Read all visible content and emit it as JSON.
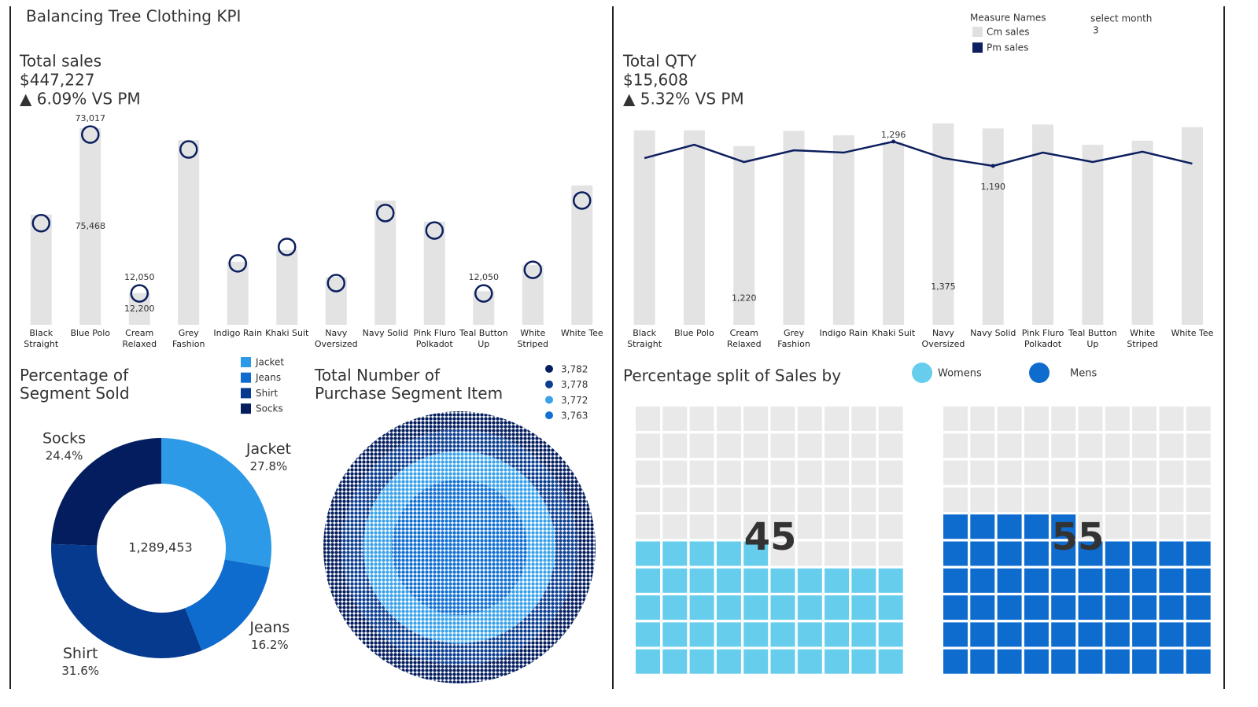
{
  "title": "Balancing Tree Clothing KPI",
  "chart_data": [
    {
      "type": "bar",
      "title": "Total sales",
      "kpi": "$447,227",
      "change": "▲ 6.09% VS PM",
      "categories": [
        "Black Straight",
        "Blue Polo",
        "Cream Relaxed",
        "Grey Fashion",
        "Indigo Rain",
        "Khaki Suit",
        "Navy Oversized",
        "Navy Solid",
        "Pink Fluro Polkadot",
        "Teal Button Up",
        "White Striped",
        "White Tee"
      ],
      "series": [
        {
          "type": "bar",
          "color": "#e3e3e3",
          "values": [
            42300,
            75468,
            12200,
            70900,
            24200,
            28700,
            18400,
            47700,
            39600,
            12900,
            23000,
            53500
          ],
          "value_labels": [
            null,
            "75,468",
            "12,200",
            null,
            null,
            null,
            null,
            null,
            null,
            null,
            null,
            null
          ]
        },
        {
          "type": "circle",
          "color": "#0c1f5e",
          "values": [
            39000,
            73017,
            12050,
            67300,
            23600,
            29900,
            16000,
            42900,
            36200,
            12050,
            21100,
            47700
          ],
          "value_labels": [
            null,
            "73,017",
            "12,050",
            null,
            null,
            null,
            null,
            null,
            null,
            "12,050",
            null,
            null
          ]
        }
      ]
    },
    {
      "type": "bar",
      "title": "Total QTY",
      "kpi": "$15,608",
      "change": "▲ 5.32% VS PM",
      "legend_title": "Measure Names",
      "filter_label": "select month",
      "filter_value": "3",
      "categories": [
        "Black Straight",
        "Blue Polo",
        "Cream Relaxed",
        "Grey Fashion",
        "Indigo Rain",
        "Khaki Suit",
        "Navy Oversized",
        "Navy Solid",
        "Pink Fluro Polkadot",
        "Teal Button Up",
        "White Striped",
        "White Tee"
      ],
      "series": [
        {
          "name": "Cm sales",
          "type": "bar",
          "color": "#e3e3e3",
          "values": [
            1328,
            1328,
            1220,
            1325,
            1294,
            1248,
            1375,
            1341,
            1368,
            1229,
            1257,
            1350
          ],
          "value_labels": [
            null,
            null,
            "1,220",
            null,
            null,
            null,
            "1,375",
            null,
            null,
            null,
            null,
            null
          ]
        },
        {
          "name": "Pm sales",
          "type": "line",
          "color": "#0c1f5e",
          "values": [
            1224,
            1282,
            1207,
            1258,
            1248,
            1296,
            1224,
            1190,
            1248,
            1207,
            1252,
            1200
          ],
          "value_labels": [
            null,
            null,
            null,
            null,
            null,
            "1,296",
            null,
            "1,190",
            null,
            null,
            null,
            null
          ]
        }
      ]
    },
    {
      "type": "donut",
      "title": "Percentage of Segment Sold",
      "center_label": "1,289,453",
      "categories": [
        "Jacket",
        "Jeans",
        "Shirt",
        "Socks"
      ],
      "values": [
        27.8,
        16.2,
        31.6,
        24.4
      ],
      "value_labels": [
        "27.8%",
        "16.2%",
        "31.6%",
        "24.4%"
      ],
      "colors": [
        "#2d9ae8",
        "#0f6ccf",
        "#053a8f",
        "#031d5e"
      ]
    },
    {
      "type": "packed",
      "title": "Total Number of Purchase Segment Item",
      "values": [
        3782,
        3778,
        3772,
        3763
      ],
      "value_labels": [
        "3,782",
        "3,778",
        "3,772",
        "3,763"
      ],
      "colors": [
        "#031d5e",
        "#0b3d90",
        "#3aa2ea",
        "#1170d2"
      ]
    },
    {
      "type": "waffle",
      "title": "Percentage split of Sales by",
      "categories": [
        "Womens",
        "Mens"
      ],
      "values": [
        45,
        55
      ],
      "colors": [
        "#66cdec",
        "#0f6ccf"
      ]
    }
  ]
}
